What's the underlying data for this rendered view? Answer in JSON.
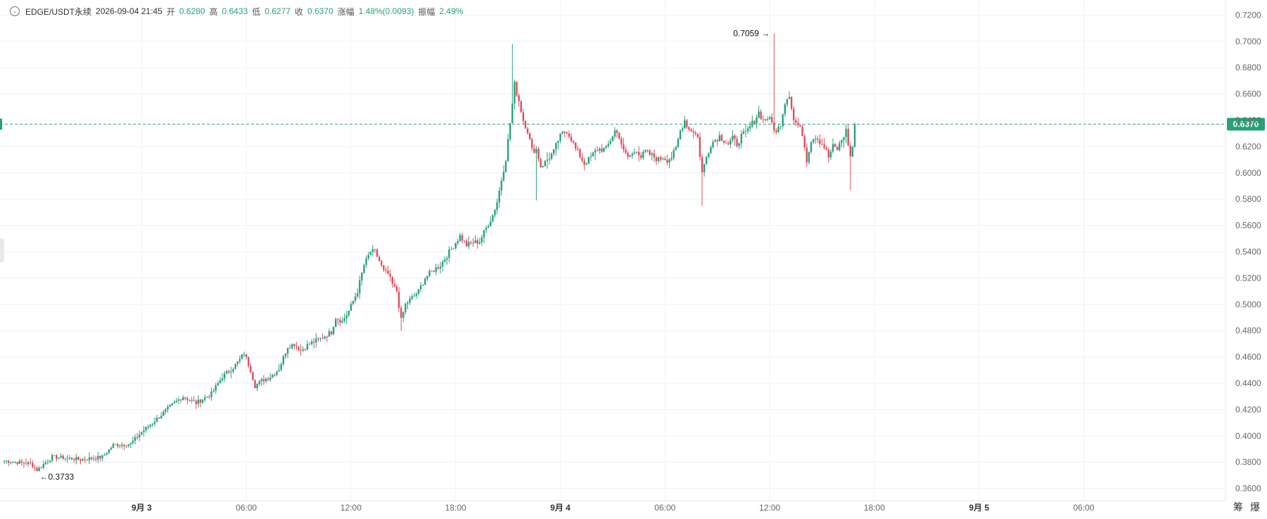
{
  "header": {
    "symbol": "EDGE/USDT永续",
    "datetime": "2026-09-04 21:45",
    "open_label": "开",
    "open": "0.6280",
    "high_label": "高",
    "high": "0.6433",
    "low_label": "低",
    "low": "0.6277",
    "close_label": "收",
    "close": "0.6370",
    "change_label": "涨幅",
    "change": "1.48%(0.0093)",
    "amplitude_label": "振幅",
    "amplitude": "2.49%"
  },
  "corner_labels": [
    "筹",
    "爆"
  ],
  "colors": {
    "up": "#26a17b",
    "down": "#e04d5a",
    "grid": "#f1f1f1",
    "axis_text": "#666666"
  },
  "chart_data": {
    "type": "candlestick",
    "y_axis": {
      "position": "right",
      "range": [
        0.355,
        0.725
      ],
      "ticks": [
        "0.7200",
        "0.7000",
        "0.6800",
        "0.6600",
        "0.6400",
        "0.6200",
        "0.6000",
        "0.5800",
        "0.5600",
        "0.5400",
        "0.5200",
        "0.5000",
        "0.4800",
        "0.4600",
        "0.4400",
        "0.4200",
        "0.4000",
        "0.3800",
        "0.3600"
      ]
    },
    "x_axis": {
      "ticks": [
        "9月 3",
        "06:00",
        "12:00",
        "18:00",
        "9月 4",
        "06:00",
        "12:00",
        "18:00",
        "9月 5",
        "06:00"
      ],
      "bold_ticks": [
        "9月 3",
        "9月 4",
        "9月 5"
      ]
    },
    "last_price": "0.6370",
    "annotations": {
      "high": "0.7059",
      "low": "0.3733"
    },
    "anchors": [
      [
        0,
        0.381
      ],
      [
        12,
        0.379
      ],
      [
        15,
        0.374
      ],
      [
        22,
        0.384
      ],
      [
        30,
        0.383
      ],
      [
        35,
        0.382
      ],
      [
        40,
        0.383
      ],
      [
        45,
        0.384
      ],
      [
        50,
        0.393
      ],
      [
        58,
        0.394
      ],
      [
        63,
        0.403
      ],
      [
        70,
        0.413
      ],
      [
        78,
        0.425
      ],
      [
        82,
        0.43
      ],
      [
        88,
        0.425
      ],
      [
        95,
        0.432
      ],
      [
        100,
        0.445
      ],
      [
        105,
        0.452
      ],
      [
        108,
        0.458
      ],
      [
        110,
        0.463
      ],
      [
        113,
        0.45
      ],
      [
        115,
        0.438
      ],
      [
        118,
        0.442
      ],
      [
        122,
        0.445
      ],
      [
        126,
        0.451
      ],
      [
        130,
        0.468
      ],
      [
        133,
        0.47
      ],
      [
        136,
        0.465
      ],
      [
        140,
        0.47
      ],
      [
        145,
        0.474
      ],
      [
        150,
        0.479
      ],
      [
        152,
        0.49
      ],
      [
        155,
        0.487
      ],
      [
        158,
        0.495
      ],
      [
        162,
        0.51
      ],
      [
        165,
        0.53
      ],
      [
        168,
        0.54
      ],
      [
        170,
        0.54
      ],
      [
        172,
        0.533
      ],
      [
        174,
        0.525
      ],
      [
        176,
        0.523
      ],
      [
        178,
        0.515
      ],
      [
        180,
        0.51
      ],
      [
        182,
        0.488
      ],
      [
        184,
        0.5
      ],
      [
        187,
        0.505
      ],
      [
        190,
        0.51
      ],
      [
        193,
        0.52
      ],
      [
        196,
        0.525
      ],
      [
        200,
        0.53
      ],
      [
        205,
        0.542
      ],
      [
        209,
        0.552
      ],
      [
        212,
        0.545
      ],
      [
        215,
        0.547
      ],
      [
        218,
        0.548
      ],
      [
        221,
        0.558
      ],
      [
        224,
        0.568
      ],
      [
        226,
        0.578
      ],
      [
        228,
        0.595
      ],
      [
        230,
        0.611
      ],
      [
        232,
        0.638
      ],
      [
        234,
        0.667
      ],
      [
        236,
        0.655
      ],
      [
        238,
        0.64
      ],
      [
        240,
        0.632
      ],
      [
        242,
        0.617
      ],
      [
        244,
        0.618
      ],
      [
        246,
        0.605
      ],
      [
        248,
        0.608
      ],
      [
        250,
        0.612
      ],
      [
        252,
        0.616
      ],
      [
        254,
        0.625
      ],
      [
        256,
        0.63
      ],
      [
        258,
        0.632
      ],
      [
        260,
        0.626
      ],
      [
        262,
        0.618
      ],
      [
        264,
        0.613
      ],
      [
        266,
        0.607
      ],
      [
        268,
        0.61
      ],
      [
        270,
        0.614
      ],
      [
        272,
        0.618
      ],
      [
        274,
        0.618
      ],
      [
        276,
        0.618
      ],
      [
        278,
        0.625
      ],
      [
        280,
        0.632
      ],
      [
        282,
        0.628
      ],
      [
        284,
        0.616
      ],
      [
        286,
        0.612
      ],
      [
        288,
        0.614
      ],
      [
        290,
        0.618
      ],
      [
        292,
        0.612
      ],
      [
        294,
        0.616
      ],
      [
        296,
        0.614
      ],
      [
        298,
        0.612
      ],
      [
        300,
        0.61
      ],
      [
        302,
        0.612
      ],
      [
        304,
        0.61
      ],
      [
        306,
        0.612
      ],
      [
        308,
        0.618
      ],
      [
        310,
        0.632
      ],
      [
        312,
        0.64
      ],
      [
        314,
        0.633
      ],
      [
        316,
        0.632
      ],
      [
        318,
        0.627
      ],
      [
        320,
        0.6
      ],
      [
        322,
        0.612
      ],
      [
        324,
        0.622
      ],
      [
        326,
        0.625
      ],
      [
        328,
        0.628
      ],
      [
        330,
        0.625
      ],
      [
        332,
        0.622
      ],
      [
        334,
        0.626
      ],
      [
        336,
        0.622
      ],
      [
        338,
        0.628
      ],
      [
        340,
        0.63
      ],
      [
        342,
        0.635
      ],
      [
        344,
        0.64
      ],
      [
        346,
        0.646
      ],
      [
        348,
        0.64
      ],
      [
        350,
        0.642
      ],
      [
        352,
        0.638
      ],
      [
        354,
        0.63
      ],
      [
        356,
        0.638
      ],
      [
        358,
        0.654
      ],
      [
        360,
        0.66
      ],
      [
        362,
        0.64
      ],
      [
        364,
        0.636
      ],
      [
        366,
        0.63
      ],
      [
        368,
        0.61
      ],
      [
        370,
        0.625
      ],
      [
        372,
        0.628
      ],
      [
        374,
        0.624
      ],
      [
        376,
        0.62
      ],
      [
        378,
        0.612
      ],
      [
        380,
        0.62
      ],
      [
        382,
        0.618
      ],
      [
        384,
        0.625
      ],
      [
        386,
        0.632
      ],
      [
        388,
        0.612
      ],
      [
        390,
        0.628
      ]
    ],
    "series": [
      {
        "type": "candle",
        "count": 391
      }
    ]
  }
}
